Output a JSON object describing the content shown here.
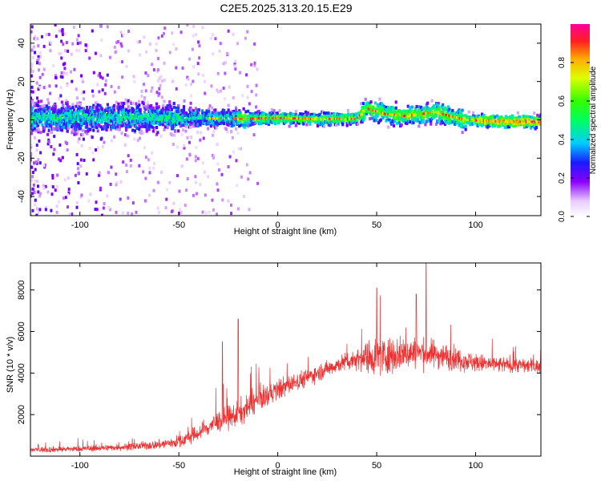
{
  "figure_title": "C2E5.2025.313.20.15.E29",
  "chart_data": [
    {
      "type": "heatmap",
      "title": "C2E5.2025.313.20.15.E29",
      "xlabel": "Height of straight line (km)",
      "ylabel": "Frequency (Hz)",
      "xlim": [
        -125,
        133
      ],
      "ylim": [
        -50,
        50
      ],
      "xticks": [
        -100,
        -50,
        0,
        50,
        100
      ],
      "yticks": [
        -40,
        -20,
        0,
        20,
        40
      ],
      "colorbar": {
        "label": "Normalized spectral amplitude",
        "range": [
          0,
          1
        ],
        "ticks": [
          0.0,
          0.2,
          0.4,
          0.6,
          0.8
        ],
        "colormap": "rainbow (violet-blue-cyan-green-yellow-red-magenta)"
      },
      "band_center_hz": [
        {
          "x": -120,
          "y": 1
        },
        {
          "x": -100,
          "y": 1
        },
        {
          "x": -80,
          "y": 1.5
        },
        {
          "x": -60,
          "y": 1
        },
        {
          "x": -40,
          "y": 1
        },
        {
          "x": -20,
          "y": 0.5
        },
        {
          "x": 0,
          "y": 1
        },
        {
          "x": 20,
          "y": 0.5
        },
        {
          "x": 40,
          "y": 0.5
        },
        {
          "x": 45,
          "y": 6
        },
        {
          "x": 55,
          "y": 3
        },
        {
          "x": 65,
          "y": 2
        },
        {
          "x": 80,
          "y": 4
        },
        {
          "x": 95,
          "y": 0
        },
        {
          "x": 115,
          "y": -1
        },
        {
          "x": 133,
          "y": -1
        }
      ]
    },
    {
      "type": "line",
      "xlabel": "Height of straight line (km)",
      "ylabel": "SNR (10 * v/v)",
      "xlim": [
        -125,
        133
      ],
      "ylim": [
        0,
        9300
      ],
      "xticks": [
        -100,
        -50,
        0,
        50,
        100
      ],
      "yticks": [
        2000,
        4000,
        6000,
        8000
      ],
      "series": [
        {
          "name": "SNR",
          "color": "#ee3030",
          "envelope": [
            {
              "x": -125,
              "mean": 300,
              "spread": 250
            },
            {
              "x": -100,
              "mean": 350,
              "spread": 250
            },
            {
              "x": -75,
              "mean": 450,
              "spread": 300
            },
            {
              "x": -60,
              "mean": 550,
              "spread": 400
            },
            {
              "x": -50,
              "mean": 700,
              "spread": 550
            },
            {
              "x": -40,
              "mean": 1100,
              "spread": 700
            },
            {
              "x": -30,
              "mean": 1700,
              "spread": 900
            },
            {
              "x": -20,
              "mean": 2000,
              "spread": 1100
            },
            {
              "x": -10,
              "mean": 2700,
              "spread": 1000
            },
            {
              "x": 0,
              "mean": 3200,
              "spread": 900
            },
            {
              "x": 10,
              "mean": 3600,
              "spread": 800
            },
            {
              "x": 20,
              "mean": 4000,
              "spread": 700
            },
            {
              "x": 30,
              "mean": 4400,
              "spread": 700
            },
            {
              "x": 40,
              "mean": 4700,
              "spread": 900
            },
            {
              "x": 50,
              "mean": 4800,
              "spread": 1700
            },
            {
              "x": 60,
              "mean": 4900,
              "spread": 1500
            },
            {
              "x": 70,
              "mean": 5000,
              "spread": 1300
            },
            {
              "x": 80,
              "mean": 4900,
              "spread": 1200
            },
            {
              "x": 90,
              "mean": 4700,
              "spread": 1000
            },
            {
              "x": 100,
              "mean": 4500,
              "spread": 800
            },
            {
              "x": 110,
              "mean": 4400,
              "spread": 700
            },
            {
              "x": 120,
              "mean": 4400,
              "spread": 650
            },
            {
              "x": 133,
              "mean": 4300,
              "spread": 600
            }
          ],
          "spikes": [
            {
              "x": -20,
              "y": 6600
            },
            {
              "x": -28,
              "y": 5500
            },
            {
              "x": 50,
              "y": 8100
            },
            {
              "x": 75,
              "y": 9300
            },
            {
              "x": 70,
              "y": 7800
            }
          ]
        }
      ]
    }
  ]
}
